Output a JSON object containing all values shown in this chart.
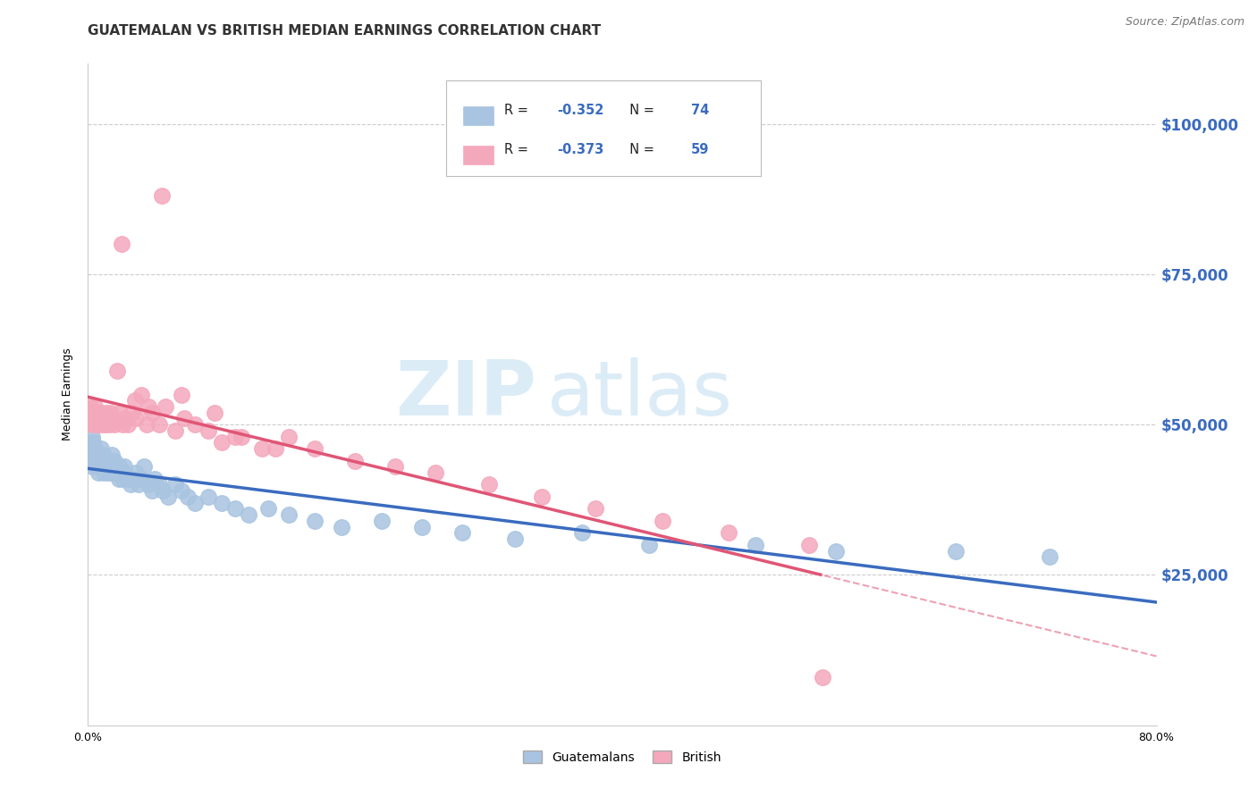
{
  "title": "GUATEMALAN VS BRITISH MEDIAN EARNINGS CORRELATION CHART",
  "source": "Source: ZipAtlas.com",
  "ylabel": "Median Earnings",
  "watermark": "ZIPatlas",
  "ytick_labels": [
    "$25,000",
    "$50,000",
    "$75,000",
    "$100,000"
  ],
  "ytick_values": [
    25000,
    50000,
    75000,
    100000
  ],
  "ymin": 0,
  "ymax": 110000,
  "xmin": 0.0,
  "xmax": 0.8,
  "guatemalan_color": "#a8c4e0",
  "british_color": "#f4a8bc",
  "guatemalan_line_color": "#3a6bbf",
  "british_line_color": "#e05575",
  "r_guatemalan": "-0.352",
  "n_guatemalan": "74",
  "r_british": "-0.373",
  "n_british": "59",
  "legend_label_guatemalan": "Guatemalans",
  "legend_label_british": "British",
  "guatemalan_x": [
    0.001,
    0.002,
    0.003,
    0.003,
    0.004,
    0.004,
    0.005,
    0.005,
    0.006,
    0.006,
    0.007,
    0.007,
    0.008,
    0.008,
    0.009,
    0.009,
    0.01,
    0.01,
    0.011,
    0.012,
    0.012,
    0.013,
    0.014,
    0.015,
    0.015,
    0.016,
    0.017,
    0.018,
    0.018,
    0.019,
    0.02,
    0.021,
    0.022,
    0.023,
    0.024,
    0.025,
    0.026,
    0.027,
    0.028,
    0.03,
    0.032,
    0.034,
    0.036,
    0.038,
    0.04,
    0.042,
    0.045,
    0.048,
    0.05,
    0.053,
    0.056,
    0.06,
    0.065,
    0.07,
    0.075,
    0.08,
    0.09,
    0.1,
    0.11,
    0.12,
    0.135,
    0.15,
    0.17,
    0.19,
    0.22,
    0.25,
    0.28,
    0.32,
    0.37,
    0.42,
    0.5,
    0.56,
    0.65,
    0.72
  ],
  "guatemalan_y": [
    44000,
    46000,
    43000,
    48000,
    45000,
    47000,
    44000,
    46000,
    43000,
    45000,
    44000,
    43000,
    42000,
    45000,
    44000,
    43000,
    46000,
    44000,
    43000,
    42000,
    45000,
    43000,
    44000,
    43000,
    42000,
    44000,
    43000,
    42000,
    45000,
    43000,
    44000,
    43000,
    42000,
    41000,
    43000,
    42000,
    41000,
    43000,
    42000,
    41000,
    40000,
    41000,
    42000,
    40000,
    41000,
    43000,
    40000,
    39000,
    41000,
    40000,
    39000,
    38000,
    40000,
    39000,
    38000,
    37000,
    38000,
    37000,
    36000,
    35000,
    36000,
    35000,
    34000,
    33000,
    34000,
    33000,
    32000,
    31000,
    32000,
    30000,
    30000,
    29000,
    29000,
    28000
  ],
  "british_x": [
    0.001,
    0.002,
    0.003,
    0.004,
    0.005,
    0.005,
    0.006,
    0.007,
    0.008,
    0.009,
    0.01,
    0.011,
    0.012,
    0.013,
    0.014,
    0.015,
    0.016,
    0.017,
    0.018,
    0.02,
    0.022,
    0.024,
    0.026,
    0.028,
    0.03,
    0.033,
    0.036,
    0.04,
    0.044,
    0.048,
    0.053,
    0.058,
    0.065,
    0.072,
    0.08,
    0.09,
    0.1,
    0.115,
    0.13,
    0.15,
    0.17,
    0.2,
    0.23,
    0.26,
    0.3,
    0.34,
    0.38,
    0.43,
    0.48,
    0.54,
    0.035,
    0.045,
    0.025,
    0.055,
    0.07,
    0.095,
    0.11,
    0.14,
    0.55
  ],
  "british_y": [
    51000,
    53000,
    50000,
    52000,
    51000,
    53000,
    50000,
    52000,
    50000,
    51000,
    52000,
    50000,
    51000,
    50000,
    52000,
    51000,
    50000,
    52000,
    51000,
    50000,
    59000,
    52000,
    50000,
    51000,
    50000,
    52000,
    51000,
    55000,
    50000,
    52000,
    50000,
    53000,
    49000,
    51000,
    50000,
    49000,
    47000,
    48000,
    46000,
    48000,
    46000,
    44000,
    43000,
    42000,
    40000,
    38000,
    36000,
    34000,
    32000,
    30000,
    54000,
    53000,
    80000,
    88000,
    55000,
    52000,
    48000,
    46000,
    8000
  ],
  "title_fontsize": 11,
  "source_fontsize": 9,
  "axis_label_fontsize": 9,
  "tick_fontsize": 9,
  "background_color": "#ffffff",
  "grid_color": "#cccccc"
}
